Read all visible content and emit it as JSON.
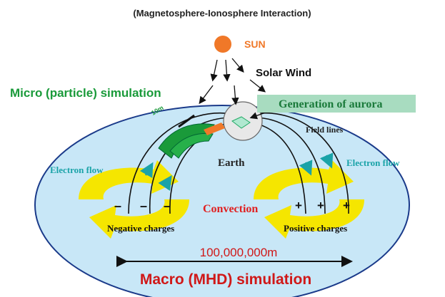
{
  "title": "(Magnetosphere-Ionosphere Interaction)",
  "sun": "SUN",
  "solar_wind": "Solar Wind",
  "micro": "Micro (particle) simulation",
  "aurora": "Generation of aurora",
  "scale_small": "10m",
  "field_lines": "Field lines",
  "earth": "Earth",
  "electron_flow": [
    "Electron flow",
    "Electron flow"
  ],
  "convection": "Convection",
  "negative": {
    "signs": [
      "–",
      "–",
      "–"
    ],
    "label": "Negative charges"
  },
  "positive": {
    "signs": [
      "+",
      "+",
      "+"
    ],
    "label": "Positive charges"
  },
  "scale_large": "100,000,000m",
  "macro": "Macro (MHD) simulation"
}
